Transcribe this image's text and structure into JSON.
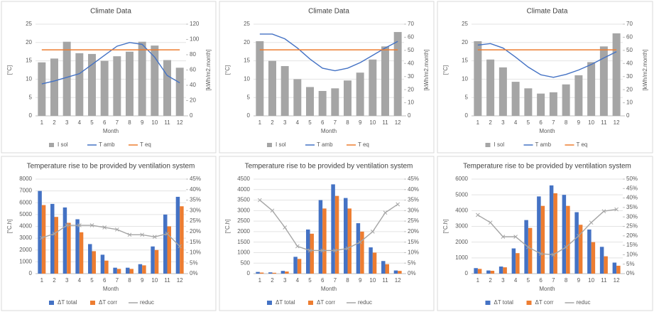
{
  "chart_data": [
    {
      "type": "combo",
      "title": "Climate Data",
      "x_label": "Month",
      "y_label": "[°C]",
      "y2_label": "[kWh/m2.month]",
      "categories": [
        1,
        2,
        3,
        4,
        5,
        6,
        7,
        8,
        9,
        10,
        11,
        12
      ],
      "series": [
        {
          "name": "I sol",
          "type": "bar",
          "axis": "y2",
          "color": "#a5a5a5",
          "values": [
            70,
            75,
            97,
            82,
            81,
            72,
            78,
            84,
            97,
            92,
            73,
            63
          ]
        },
        {
          "name": "T amb",
          "type": "line",
          "color": "#4472c4",
          "values": [
            8.7,
            9.5,
            10.5,
            11.5,
            14,
            16.5,
            19,
            20,
            19.5,
            16,
            11,
            9
          ]
        },
        {
          "name": "T eq",
          "type": "line",
          "color": "#ed7d31",
          "values": [
            18,
            18,
            18,
            18,
            18,
            18,
            18,
            18,
            18,
            18,
            18,
            18
          ]
        }
      ],
      "ylim": [
        0,
        25
      ],
      "yticks": [
        0,
        5,
        10,
        15,
        20,
        25
      ],
      "y2lim": [
        0,
        120
      ],
      "y2ticks": [
        0,
        20,
        40,
        60,
        80,
        100,
        120
      ],
      "grid": true
    },
    {
      "type": "combo",
      "title": "Climate Data",
      "x_label": "Month",
      "y_label": "[°C]",
      "y2_label": "[kWh/m2.month]",
      "categories": [
        1,
        2,
        3,
        4,
        5,
        6,
        7,
        8,
        9,
        10,
        11,
        12
      ],
      "series": [
        {
          "name": "I sol",
          "type": "bar",
          "axis": "y2",
          "color": "#a5a5a5",
          "values": [
            57,
            42,
            38,
            28,
            22,
            19,
            21,
            27,
            33,
            43,
            53,
            64
          ]
        },
        {
          "name": "T amb",
          "type": "line",
          "color": "#4472c4",
          "values": [
            22.3,
            22.3,
            21,
            18.5,
            15.5,
            13,
            12.3,
            13,
            14.5,
            16.5,
            18.5,
            20.3
          ]
        },
        {
          "name": "T eq",
          "type": "line",
          "color": "#ed7d31",
          "values": [
            18,
            18,
            18,
            18,
            18,
            18,
            18,
            18,
            18,
            18,
            18,
            18
          ]
        }
      ],
      "ylim": [
        0,
        25
      ],
      "yticks": [
        0,
        5,
        10,
        15,
        20,
        25
      ],
      "y2lim": [
        0,
        70
      ],
      "y2ticks": [
        0,
        10,
        20,
        30,
        40,
        50,
        60,
        70
      ],
      "grid": true
    },
    {
      "type": "combo",
      "title": "Climate Data",
      "x_label": "Month",
      "y_label": "[°C]",
      "y2_label": "[kWh/m2.month]",
      "categories": [
        1,
        2,
        3,
        4,
        5,
        6,
        7,
        8,
        9,
        10,
        11,
        12
      ],
      "series": [
        {
          "name": "I sol",
          "type": "bar",
          "axis": "y2",
          "color": "#a5a5a5",
          "values": [
            57,
            43,
            37,
            26,
            21,
            17,
            18,
            24,
            31,
            41,
            53,
            63
          ]
        },
        {
          "name": "T amb",
          "type": "line",
          "color": "#4472c4",
          "values": [
            19.3,
            19.7,
            18.5,
            16,
            13.3,
            11.2,
            10.5,
            11.3,
            12.5,
            14,
            15.8,
            17.5
          ]
        },
        {
          "name": "T eq",
          "type": "line",
          "color": "#ed7d31",
          "values": [
            18,
            18,
            18,
            18,
            18,
            18,
            18,
            18,
            18,
            18,
            18,
            18
          ]
        }
      ],
      "ylim": [
        0,
        25
      ],
      "yticks": [
        0,
        5,
        10,
        15,
        20,
        25
      ],
      "y2lim": [
        0,
        70
      ],
      "y2ticks": [
        0,
        10,
        20,
        30,
        40,
        50,
        60,
        70
      ],
      "grid": true
    },
    {
      "type": "combo",
      "title": "Temperature rise to be provided by ventilation system",
      "x_label": "Month",
      "y_label": "[°C.h]",
      "categories": [
        1,
        2,
        3,
        4,
        5,
        6,
        7,
        8,
        9,
        10,
        11,
        12
      ],
      "series": [
        {
          "name": "ΔT total",
          "type": "bar",
          "color": "#4472c4",
          "values": [
            7000,
            5900,
            5600,
            4600,
            2500,
            1600,
            500,
            500,
            800,
            2300,
            5000,
            6500
          ]
        },
        {
          "name": "ΔT corr",
          "type": "bar",
          "color": "#ed7d31",
          "values": [
            5800,
            4800,
            4300,
            3500,
            1900,
            1100,
            400,
            400,
            700,
            2000,
            4000,
            5700
          ]
        },
        {
          "name": "reduc",
          "type": "line",
          "axis": "y2",
          "marker": "x",
          "color": "#a5a5a5",
          "values": [
            17,
            19,
            23,
            23,
            23,
            22,
            21,
            18.5,
            18.5,
            17.5,
            19,
            13
          ]
        }
      ],
      "ylim": [
        0,
        8000
      ],
      "yticks": [
        0,
        1000,
        2000,
        3000,
        4000,
        5000,
        6000,
        7000,
        8000
      ],
      "y2lim": [
        0,
        45
      ],
      "y2ticks": [
        {
          "value": 0,
          "label": "0%"
        },
        {
          "value": 5,
          "label": "5%"
        },
        {
          "value": 10,
          "label": "10%"
        },
        {
          "value": 15,
          "label": "15%"
        },
        {
          "value": 20,
          "label": "20%"
        },
        {
          "value": 25,
          "label": "25%"
        },
        {
          "value": 30,
          "label": "30%"
        },
        {
          "value": 35,
          "label": "35%"
        },
        {
          "value": 40,
          "label": "40%"
        },
        {
          "value": 45,
          "label": "45%"
        }
      ],
      "grid": true
    },
    {
      "type": "combo",
      "title": "Temperature rise to be provided by ventilation system",
      "x_label": "Month",
      "y_label": "[°C.h]",
      "categories": [
        1,
        2,
        3,
        4,
        5,
        6,
        7,
        8,
        9,
        10,
        11,
        12
      ],
      "series": [
        {
          "name": "ΔT total",
          "type": "bar",
          "color": "#4472c4",
          "values": [
            80,
            60,
            130,
            800,
            2100,
            3500,
            4250,
            3600,
            2400,
            1250,
            600,
            150
          ]
        },
        {
          "name": "ΔT corr",
          "type": "bar",
          "color": "#ed7d31",
          "values": [
            50,
            40,
            100,
            700,
            1900,
            3100,
            3700,
            3100,
            2000,
            1000,
            450,
            130
          ]
        },
        {
          "name": "reduc",
          "type": "line",
          "axis": "y2",
          "marker": "x",
          "color": "#a5a5a5",
          "values": [
            35,
            30,
            22,
            13,
            11,
            11,
            11,
            12,
            15,
            20,
            29,
            33
          ]
        }
      ],
      "ylim": [
        0,
        4500
      ],
      "yticks": [
        0,
        500,
        1000,
        1500,
        2000,
        2500,
        3000,
        3500,
        4000,
        4500
      ],
      "y2lim": [
        0,
        45
      ],
      "y2ticks": [
        {
          "value": 0,
          "label": "0%"
        },
        {
          "value": 5,
          "label": "5%"
        },
        {
          "value": 10,
          "label": "10%"
        },
        {
          "value": 15,
          "label": "15%"
        },
        {
          "value": 20,
          "label": "20%"
        },
        {
          "value": 25,
          "label": "25%"
        },
        {
          "value": 30,
          "label": "30%"
        },
        {
          "value": 35,
          "label": "35%"
        },
        {
          "value": 40,
          "label": "40%"
        },
        {
          "value": 45,
          "label": "45%"
        }
      ],
      "grid": true
    },
    {
      "type": "combo",
      "title": "Temperature rise to be provided by ventilation system",
      "x_label": "Month",
      "y_label": "[°C.h]",
      "categories": [
        1,
        2,
        3,
        4,
        5,
        6,
        7,
        8,
        9,
        10,
        11,
        12
      ],
      "series": [
        {
          "name": "ΔT total",
          "type": "bar",
          "color": "#4472c4",
          "values": [
            350,
            200,
            450,
            1600,
            3400,
            4900,
            5600,
            5000,
            3900,
            2800,
            1700,
            700
          ]
        },
        {
          "name": "ΔT corr",
          "type": "bar",
          "color": "#ed7d31",
          "values": [
            300,
            180,
            400,
            1300,
            2900,
            4300,
            5100,
            4300,
            3100,
            2000,
            1100,
            500
          ]
        },
        {
          "name": "reduc",
          "type": "line",
          "axis": "y2",
          "marker": "x",
          "color": "#a5a5a5",
          "values": [
            31,
            27,
            19.5,
            19.5,
            14,
            10.5,
            10,
            14,
            20,
            27,
            33,
            34
          ]
        }
      ],
      "ylim": [
        0,
        6000
      ],
      "yticks": [
        0,
        1000,
        2000,
        3000,
        4000,
        5000,
        6000
      ],
      "y2lim": [
        0,
        50
      ],
      "y2ticks": [
        {
          "value": 0,
          "label": "0%"
        },
        {
          "value": 5,
          "label": "5%"
        },
        {
          "value": 10,
          "label": "10%"
        },
        {
          "value": 15,
          "label": "15%"
        },
        {
          "value": 20,
          "label": "20%"
        },
        {
          "value": 25,
          "label": "25%"
        },
        {
          "value": 30,
          "label": "30%"
        },
        {
          "value": 35,
          "label": "35%"
        },
        {
          "value": 40,
          "label": "40%"
        },
        {
          "value": 45,
          "label": "45%"
        },
        {
          "value": 50,
          "label": "50%"
        }
      ],
      "grid": true
    }
  ]
}
